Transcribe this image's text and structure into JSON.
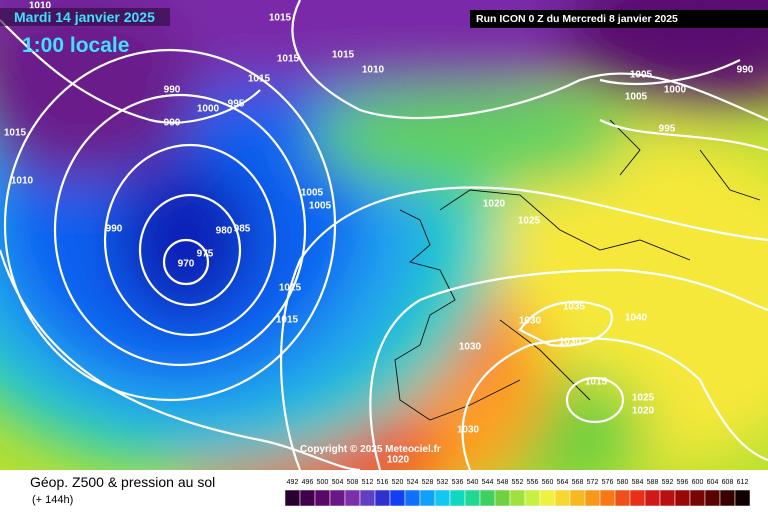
{
  "header": {
    "date": "Mardi 14 janvier 2025",
    "time": "1:00 locale",
    "run": "Run ICON 0 Z du Mercredi 8 janvier 2025"
  },
  "isobar_labels": [
    "1010",
    "1015",
    "1015",
    "1015",
    "1010",
    "1015",
    "995",
    "1000",
    "990",
    "990",
    "1015",
    "1010",
    "990",
    "975",
    "970",
    "980",
    "985",
    "1005",
    "1005",
    "1015",
    "1015",
    "1020",
    "1025",
    "1030",
    "1030",
    "1035",
    "1040",
    "1030",
    "1030",
    "1020",
    "1015",
    "1025",
    "1020",
    "1005",
    "1005",
    "1000",
    "995",
    "990"
  ],
  "copyright": "Copyright © 2025 Meteociel.fr",
  "footer": {
    "title": "Géop. Z500 & pression au sol",
    "subtitle": "(+ 144h)"
  },
  "legend": {
    "labels": [
      492,
      496,
      500,
      504,
      508,
      512,
      516,
      520,
      524,
      528,
      532,
      536,
      540,
      544,
      548,
      552,
      556,
      560,
      564,
      568,
      572,
      576,
      580,
      584,
      588,
      592,
      596,
      600,
      604,
      608,
      612
    ]
  }
}
